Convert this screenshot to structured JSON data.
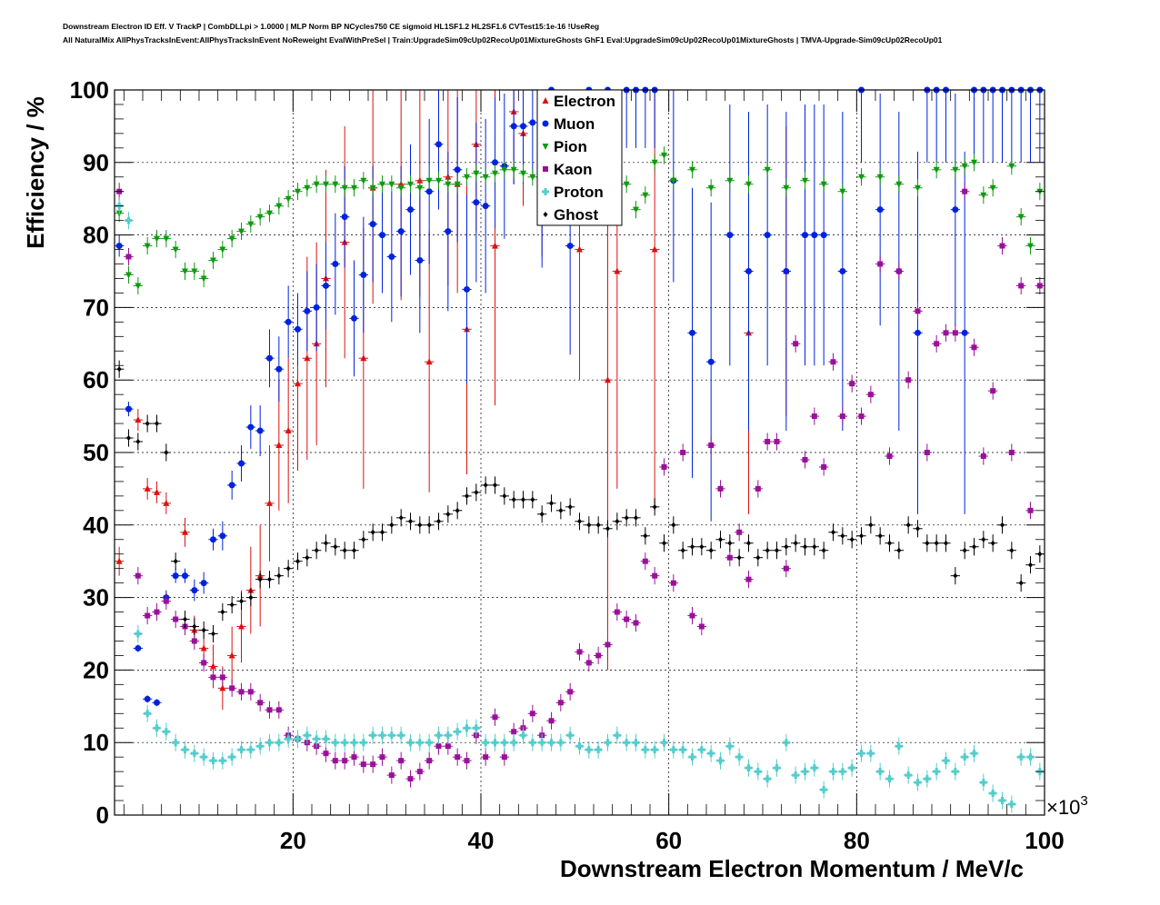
{
  "header": {
    "line1": "Downstream Electron ID Eff. V TrackP | CombDLLpi > 1.0000 | MLP Norm BP NCycles750 CE sigmoid HL1SF1.2 HL2SF1.6 CVTest15:1e-16 !UseReg",
    "line2": "All NaturalMix AllPhysTracksInEvent:AllPhysTracksInEvent NoReweight EvalWithPreSel | Train:UpgradeSim09cUp02RecoUp01MixtureGhosts GhF1 Eval:UpgradeSim09cUp02RecoUp01MixtureGhosts | TMVA-Upgrade-Sim09cUp02RecoUp01"
  },
  "chart_data": {
    "type": "scatter",
    "xlabel": "Downstream Electron Momentum / MeV/c",
    "ylabel": "Efficiency / %",
    "x_multiplier": "×10",
    "x_multiplier_exp": "3",
    "xlim": [
      1000,
      100000
    ],
    "ylim": [
      0,
      100
    ],
    "x_tick_labels": [
      "20",
      "40",
      "60",
      "80",
      "100"
    ],
    "x_tick_values": [
      20000,
      40000,
      60000,
      80000,
      100000
    ],
    "y_tick_values": [
      0,
      10,
      20,
      30,
      40,
      50,
      60,
      70,
      80,
      90,
      100
    ],
    "grid": true,
    "legend_position": "top-center",
    "bin_width": 1000,
    "series": [
      {
        "name": "Electron",
        "color": "#dd1111",
        "marker": "triangle-up",
        "x": [
          1500,
          3500,
          4500,
          5500,
          6500,
          8500,
          9500,
          10500,
          11500,
          12500,
          13500,
          14500,
          15500,
          16500,
          17500,
          18500,
          19500,
          20500,
          21500,
          22500,
          23500,
          25500,
          27500,
          28500,
          31500,
          33500,
          34500,
          36500,
          37500,
          38500,
          39500,
          41500,
          43500,
          44500,
          46500,
          50500,
          53500,
          54500,
          58500,
          68500,
          72500
        ],
        "y": [
          35,
          54.5,
          45,
          44.5,
          43,
          39,
          25.5,
          23,
          20.5,
          17.5,
          22,
          26,
          31,
          33,
          43,
          51,
          53,
          59.5,
          63,
          65,
          74,
          79,
          63,
          86.5,
          87,
          87.5,
          62.5,
          88,
          87,
          67,
          92.5,
          78.5,
          97,
          94,
          89,
          78,
          60,
          75,
          78,
          66.5,
          75
        ],
        "err": [
          2,
          1.5,
          1.5,
          1.5,
          1.5,
          2,
          2,
          2.5,
          3,
          3,
          4,
          5,
          6,
          7,
          8,
          9,
          10,
          12,
          14,
          14,
          15,
          16,
          18,
          16,
          16,
          16,
          18,
          15,
          15,
          20,
          12,
          22,
          10,
          10,
          12,
          18,
          40,
          30,
          36,
          25,
          20
        ]
      },
      {
        "name": "Muon",
        "color": "#0022dd",
        "marker": "circle",
        "x": [
          1500,
          2500,
          3500,
          4500,
          5500,
          6500,
          7500,
          8500,
          9500,
          10500,
          11500,
          12500,
          13500,
          14500,
          15500,
          16500,
          17500,
          18500,
          19500,
          20500,
          21500,
          22500,
          23500,
          24500,
          25500,
          26500,
          27500,
          28500,
          29500,
          30500,
          31500,
          32500,
          33500,
          34500,
          35500,
          36500,
          37500,
          38500,
          39500,
          40500,
          41500,
          42500,
          43500,
          44500,
          45500,
          46500,
          47500,
          49500,
          51500,
          53500,
          55500,
          56500,
          57500,
          58500,
          60500,
          62500,
          64500,
          66500,
          68500,
          70500,
          72500,
          74500,
          75500,
          76500,
          78500,
          80500,
          82500,
          84500,
          86500,
          87500,
          88500,
          89500,
          90500,
          91500,
          92500,
          93500,
          94500,
          95500,
          96500,
          97500,
          98500,
          99500
        ],
        "y": [
          78.5,
          56,
          23,
          16,
          15.5,
          30,
          33,
          33,
          31,
          32,
          38,
          38.5,
          45.5,
          48.5,
          53.5,
          53,
          63,
          61.5,
          68,
          67,
          69.5,
          70,
          73,
          76,
          82.5,
          68.5,
          74.5,
          81.5,
          80,
          77,
          80.5,
          83.5,
          76.5,
          86,
          92.5,
          80.5,
          89,
          72.5,
          84.5,
          84,
          90,
          89.5,
          95,
          95,
          95.5,
          87.5,
          100,
          78.5,
          100,
          100,
          100,
          100,
          100,
          100,
          87.5,
          66.5,
          62.5,
          80,
          75,
          80,
          75,
          80,
          80,
          80,
          75,
          100,
          83.5,
          75,
          66.5,
          100,
          100,
          100,
          83.5,
          66.5,
          100,
          100,
          100,
          100,
          100,
          100,
          100,
          100
        ],
        "err": [
          1.5,
          1,
          0.5,
          0.5,
          0.5,
          1,
          1,
          1,
          1.5,
          1.5,
          1.5,
          2,
          2,
          2.5,
          3,
          3.5,
          4,
          4.5,
          5,
          5,
          5.5,
          6,
          6,
          7,
          7,
          8,
          8,
          8,
          8,
          9,
          9,
          9,
          10,
          10,
          9,
          11,
          10,
          13,
          11,
          12,
          9,
          10,
          8,
          8,
          8,
          12,
          5,
          15,
          8,
          8,
          8,
          8,
          8,
          8,
          14,
          20,
          22,
          18,
          22,
          18,
          22,
          18,
          18,
          18,
          22,
          10,
          16,
          22,
          25,
          10,
          10,
          10,
          16,
          25,
          10,
          10,
          10,
          10,
          10,
          10,
          10,
          10
        ]
      },
      {
        "name": "Pion",
        "color": "#119911",
        "marker": "triangle-down",
        "x": [
          1500,
          2500,
          3500,
          4500,
          5500,
          6500,
          7500,
          8500,
          9500,
          10500,
          11500,
          12500,
          13500,
          14500,
          15500,
          16500,
          17500,
          18500,
          19500,
          20500,
          21500,
          22500,
          23500,
          24500,
          25500,
          26500,
          27500,
          28500,
          29500,
          30500,
          31500,
          32500,
          33500,
          34500,
          35500,
          36500,
          37500,
          38500,
          39500,
          40500,
          41500,
          42500,
          43500,
          44500,
          45500,
          46500,
          47500,
          48500,
          49500,
          50500,
          51500,
          52500,
          53500,
          54500,
          55500,
          56500,
          57500,
          58500,
          59500,
          60500,
          62500,
          64500,
          66500,
          68500,
          70500,
          72500,
          74500,
          76500,
          78500,
          80500,
          82500,
          84500,
          86500,
          88500,
          90500,
          91500,
          92500,
          93500,
          94500,
          96500,
          97500,
          98500,
          99500
        ],
        "y": [
          83,
          74.5,
          73,
          78.5,
          79.5,
          79.5,
          78,
          75,
          75,
          74,
          76.5,
          78,
          79.5,
          80.5,
          81.5,
          82.5,
          83,
          84,
          85,
          86,
          86.5,
          87,
          87,
          87,
          86.5,
          86.5,
          87.5,
          86.5,
          87,
          87,
          86.5,
          87,
          86.5,
          87.5,
          87.5,
          87,
          87,
          88,
          88.5,
          88,
          88.5,
          89,
          89,
          88.5,
          88,
          87,
          90,
          88.5,
          87,
          87,
          87,
          87,
          86,
          87,
          87,
          83.5,
          85.5,
          90,
          91,
          87.5,
          89,
          86.5,
          87.5,
          87,
          89,
          86.5,
          87.5,
          87,
          86,
          88,
          88,
          87,
          86.5,
          89,
          89,
          89.5,
          90,
          85.5,
          86.5,
          89.5,
          82.5,
          78.5,
          86
        ]
      },
      {
        "name": "Kaon",
        "color": "#991199",
        "marker": "square",
        "x": [
          1500,
          2500,
          3500,
          4500,
          5500,
          6500,
          7500,
          8500,
          9500,
          10500,
          11500,
          12500,
          13500,
          14500,
          15500,
          16500,
          17500,
          18500,
          19500,
          20500,
          21500,
          22500,
          23500,
          24500,
          25500,
          26500,
          27500,
          28500,
          29500,
          30500,
          31500,
          32500,
          33500,
          34500,
          35500,
          36500,
          37500,
          38500,
          39500,
          40500,
          41500,
          42500,
          43500,
          44500,
          45500,
          46500,
          47500,
          48500,
          49500,
          50500,
          51500,
          52500,
          53500,
          54500,
          55500,
          56500,
          57500,
          58500,
          59500,
          60500,
          61500,
          62500,
          63500,
          64500,
          65500,
          66500,
          67500,
          68500,
          69500,
          70500,
          71500,
          72500,
          73500,
          74500,
          75500,
          76500,
          77500,
          78500,
          79500,
          80500,
          81500,
          82500,
          83500,
          84500,
          85500,
          86500,
          87500,
          88500,
          89500,
          90500,
          91500,
          92500,
          93500,
          94500,
          95500,
          96500,
          97500,
          98500,
          99500
        ],
        "y": [
          86,
          77,
          33,
          27.5,
          28,
          29.5,
          27,
          26,
          24,
          21,
          19,
          19,
          17.5,
          17,
          17,
          15.5,
          14.5,
          14.5,
          11,
          10.5,
          10,
          9.5,
          8.5,
          7.5,
          7.5,
          8,
          7,
          7,
          8,
          5.5,
          7.5,
          5,
          6,
          7.5,
          9.5,
          9.5,
          8,
          7.5,
          11,
          8,
          13.5,
          8,
          11.5,
          12,
          14,
          11,
          13,
          15.5,
          17,
          22.5,
          21,
          22,
          23.5,
          28,
          27,
          26.5,
          35,
          33,
          48,
          32,
          50,
          27.5,
          26,
          51,
          45,
          35.5,
          39,
          32.5,
          45,
          51.5,
          51.5,
          34,
          65,
          49,
          55,
          48,
          62.5,
          55,
          59.5,
          55,
          58,
          76,
          49.5,
          75,
          60,
          69.5,
          50,
          65,
          66.5,
          66.5,
          86,
          64.5,
          49.5,
          58.5,
          78.5,
          50,
          73,
          42,
          73
        ]
      },
      {
        "name": "Proton",
        "color": "#55cccc",
        "marker": "cross",
        "x": [
          1500,
          2500,
          3500,
          4500,
          5500,
          6500,
          7500,
          8500,
          9500,
          10500,
          11500,
          12500,
          13500,
          14500,
          15500,
          16500,
          17500,
          18500,
          19500,
          20500,
          21500,
          22500,
          23500,
          24500,
          25500,
          26500,
          27500,
          28500,
          29500,
          30500,
          31500,
          32500,
          33500,
          34500,
          35500,
          36500,
          37500,
          38500,
          39500,
          40500,
          41500,
          42500,
          43500,
          44500,
          45500,
          46500,
          47500,
          48500,
          49500,
          50500,
          51500,
          52500,
          53500,
          54500,
          55500,
          56500,
          57500,
          58500,
          59500,
          60500,
          61500,
          62500,
          63500,
          64500,
          65500,
          66500,
          67500,
          68500,
          69500,
          70500,
          71500,
          72500,
          73500,
          74500,
          75500,
          76500,
          77500,
          78500,
          79500,
          80500,
          81500,
          82500,
          83500,
          84500,
          85500,
          86500,
          87500,
          88500,
          89500,
          90500,
          91500,
          92500,
          93500,
          94500,
          95500,
          96500,
          97500,
          98500,
          99500
        ],
        "y": [
          84,
          82,
          25,
          14,
          12,
          11.5,
          10,
          9,
          8.5,
          8,
          7.5,
          7.5,
          8,
          9,
          9,
          9.5,
          10,
          10,
          10.5,
          10.5,
          11,
          10.5,
          10.5,
          10,
          10,
          10,
          10,
          11,
          11,
          11,
          11,
          10,
          10,
          10,
          11,
          11,
          11.5,
          12,
          12,
          10,
          10,
          10,
          10,
          11,
          10,
          10,
          10,
          10,
          11,
          9.5,
          9,
          9,
          10,
          11,
          10,
          10,
          9,
          9,
          10,
          9,
          9,
          8,
          9,
          8.5,
          7.5,
          9.5,
          8,
          6.5,
          6,
          5,
          6.5,
          10,
          5.5,
          6,
          6.5,
          3.5,
          6,
          6,
          6.5,
          8.5,
          8.5,
          6,
          5,
          9.5,
          5.5,
          4.5,
          5,
          6,
          7.5,
          6,
          8,
          8.5,
          4.5,
          3,
          2,
          1.5,
          8,
          8,
          6
        ]
      },
      {
        "name": "Ghost",
        "color": "#000000",
        "marker": "diamond",
        "x": [
          1500,
          2500,
          3500,
          4500,
          5500,
          6500,
          7500,
          8500,
          9500,
          10500,
          11500,
          12500,
          13500,
          14500,
          15500,
          16500,
          17500,
          18500,
          19500,
          20500,
          21500,
          22500,
          23500,
          24500,
          25500,
          26500,
          27500,
          28500,
          29500,
          30500,
          31500,
          32500,
          33500,
          34500,
          35500,
          36500,
          37500,
          38500,
          39500,
          40500,
          41500,
          42500,
          43500,
          44500,
          45500,
          46500,
          47500,
          48500,
          49500,
          50500,
          51500,
          52500,
          53500,
          54500,
          55500,
          56500,
          57500,
          58500,
          59500,
          60500,
          61500,
          62500,
          63500,
          64500,
          65500,
          66500,
          67500,
          68500,
          69500,
          70500,
          71500,
          72500,
          73500,
          74500,
          75500,
          76500,
          77500,
          78500,
          79500,
          80500,
          81500,
          82500,
          83500,
          84500,
          85500,
          86500,
          87500,
          88500,
          89500,
          90500,
          91500,
          92500,
          93500,
          94500,
          95500,
          96500,
          97500,
          98500,
          99500
        ],
        "y": [
          61.5,
          52,
          51.5,
          54,
          54,
          50,
          35,
          27,
          26,
          25.5,
          25,
          28,
          29,
          29.5,
          30,
          32.5,
          32.5,
          33,
          34,
          35,
          35.5,
          36.5,
          37.5,
          37,
          36.5,
          36.5,
          38,
          39,
          39,
          40,
          41,
          40.5,
          40,
          40,
          40.5,
          41.5,
          42,
          44,
          44.5,
          45.5,
          45.5,
          44,
          43.5,
          43.5,
          43.5,
          41.5,
          43,
          42,
          42.5,
          40.5,
          40,
          40,
          39.5,
          40.5,
          41,
          41,
          38.5,
          42.5,
          37.5,
          40,
          36.5,
          37,
          37,
          36.5,
          38,
          37.5,
          35.5,
          37.5,
          35.5,
          36.5,
          36.5,
          37,
          37.5,
          37,
          37,
          36.5,
          39,
          38.5,
          38,
          38.5,
          40,
          38.5,
          37.5,
          36.5,
          40,
          39.5,
          37.5,
          37.5,
          37.5,
          33,
          36.5,
          37,
          38,
          37.5,
          40,
          36.5,
          32,
          34.5,
          36
        ]
      }
    ]
  }
}
